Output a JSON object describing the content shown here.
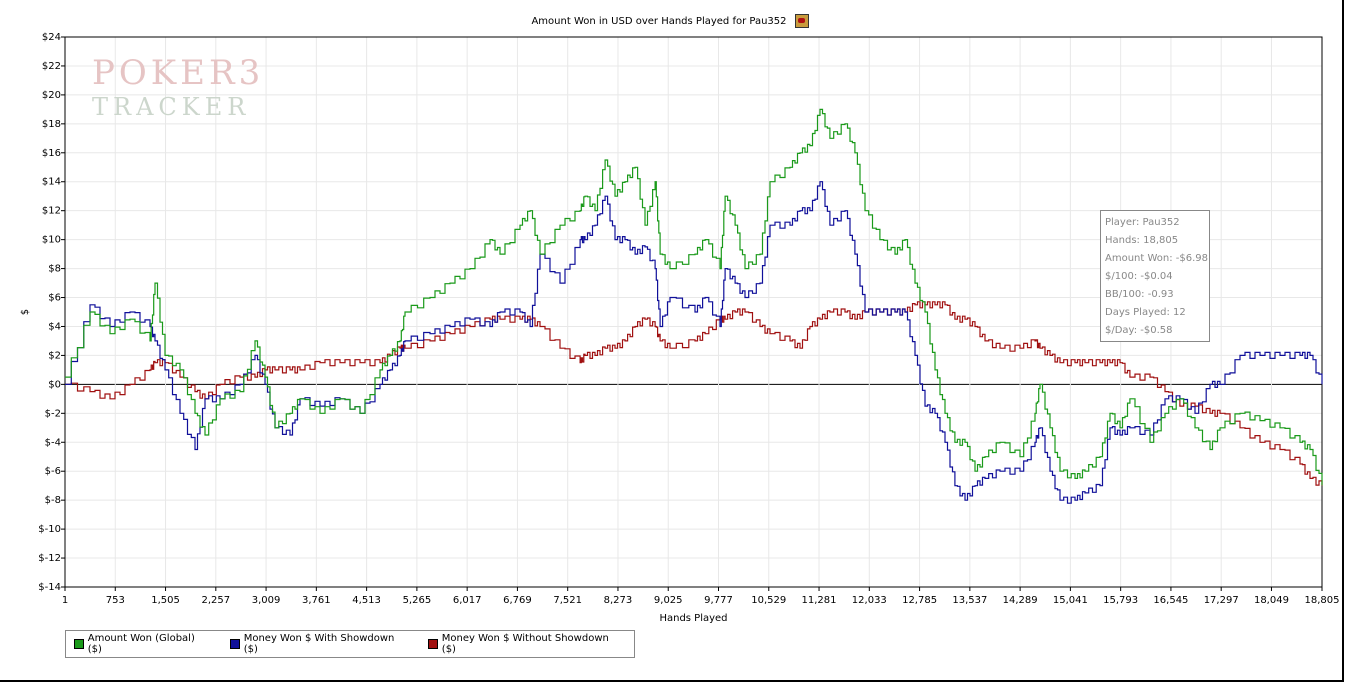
{
  "chart_data": {
    "type": "line",
    "title": "Amount Won in USD over Hands Played for Pau352",
    "xlabel": "Hands Played",
    "ylabel": "$",
    "xlim": [
      1,
      18805
    ],
    "ylim": [
      -14,
      24
    ],
    "yticks": [
      24,
      22,
      20,
      18,
      16,
      14,
      12,
      10,
      8,
      6,
      4,
      2,
      0,
      -2,
      -4,
      -6,
      -8,
      -10,
      -12,
      -14
    ],
    "ytick_labels": [
      "$24",
      "$22",
      "$20",
      "$18",
      "$16",
      "$14",
      "$12",
      "$10",
      "$8",
      "$6",
      "$4",
      "$2",
      "$0",
      "$-2",
      "$-4",
      "$-6",
      "$-8",
      "$-10",
      "$-12",
      "$-14"
    ],
    "xticks": [
      1,
      753,
      1505,
      2257,
      3009,
      3761,
      4513,
      5265,
      6017,
      6769,
      7521,
      8273,
      9025,
      9777,
      10529,
      11281,
      12033,
      12785,
      13537,
      14289,
      15041,
      15793,
      16545,
      17297,
      18049,
      18805
    ],
    "xtick_labels": [
      "1",
      "753",
      "1,505",
      "2,257",
      "3,009",
      "3,761",
      "4,513",
      "5,265",
      "6,017",
      "6,769",
      "7,521",
      "8,273",
      "9,025",
      "9,777",
      "10,529",
      "11,281",
      "12,033",
      "12,785",
      "13,537",
      "14,289",
      "15,041",
      "15,793",
      "16,545",
      "17,297",
      "18,049",
      "18,805"
    ],
    "grid": true,
    "legend": "bottom-left",
    "x": [
      1,
      375,
      674,
      973,
      1272,
      1347,
      1497,
      1721,
      1946,
      2095,
      2320,
      2619,
      2843,
      2993,
      3143,
      3367,
      3517,
      3816,
      4115,
      4414,
      4713,
      4863,
      5013,
      5087,
      5461,
      5760,
      6060,
      6359,
      6509,
      6808,
      6958,
      7107,
      7406,
      7706,
      7780,
      7930,
      8080,
      8229,
      8379,
      8529,
      8678,
      8828,
      8903,
      9052,
      9426,
      9576,
      9800,
      9875,
      10025,
      10173,
      10398,
      10547,
      10846,
      10996,
      11145,
      11295,
      11444,
      11669,
      11818,
      11968,
      12192,
      12417,
      12567,
      12716,
      12866,
      13015,
      13165,
      13314,
      13464,
      13614,
      13763,
      13988,
      14287,
      14511,
      14586,
      14736,
      14885,
      15110,
      15259,
      15484,
      15633,
      15783,
      15932,
      16232,
      16456,
      16680,
      16905,
      17129,
      17279,
      17578,
      17877,
      18176,
      18476,
      18625,
      18805
    ],
    "series": [
      {
        "name": "Amount Won (Global) ($)",
        "color": "#1a9a1a",
        "values": [
          0.5,
          5,
          3.5,
          4.5,
          3,
          7,
          2,
          1,
          -2,
          -3.5,
          -1,
          -0.5,
          3,
          0.5,
          -3,
          -2,
          -1,
          -2,
          -1,
          -2,
          1,
          2,
          3,
          5,
          6,
          7,
          8,
          10,
          9,
          11,
          12,
          9,
          11,
          12,
          13,
          12,
          15.5,
          13,
          14,
          15,
          11,
          14,
          9,
          8,
          9,
          10,
          8,
          13,
          11,
          8,
          9,
          14,
          15,
          16,
          16.5,
          19,
          17,
          18,
          16,
          12,
          10,
          9,
          10,
          7,
          5,
          1,
          -2,
          -4,
          -4,
          -6,
          -5,
          -4,
          -5,
          -2,
          0,
          -3,
          -6,
          -6.5,
          -6,
          -5,
          -2,
          -3,
          -1,
          -4,
          -2,
          -1,
          -3,
          -4.5,
          -3,
          -2,
          -2.5,
          -3,
          -4,
          -4.5,
          -6.98
        ]
      },
      {
        "name": "Money Won $ With Showdown ($)",
        "color": "#10109a",
        "values": [
          0,
          5.5,
          4,
          5,
          4,
          3,
          1,
          -2,
          -4.5,
          -1,
          -1,
          0,
          2,
          0,
          -3,
          -3.5,
          -1,
          -1.5,
          -1,
          -2,
          0,
          1,
          2,
          3,
          3.5,
          4,
          4.5,
          4,
          5,
          5,
          4,
          9,
          7,
          10,
          10,
          11,
          13,
          10,
          10,
          9,
          9.5,
          8,
          4,
          6,
          5,
          6,
          4,
          8,
          7,
          6,
          7,
          11,
          11,
          12,
          12,
          14,
          11,
          12,
          9,
          5,
          5,
          5,
          5,
          2,
          -1.5,
          -2,
          -4,
          -7,
          -8,
          -7,
          -6.5,
          -6,
          -6,
          -4,
          -3,
          -6,
          -8,
          -8,
          -7.5,
          -7,
          -3,
          -3.5,
          -3,
          -3.5,
          -1,
          -1,
          -2,
          0,
          0,
          2,
          2,
          2,
          2,
          2,
          0
        ]
      },
      {
        "name": "Money Won $ Without Showdown ($)",
        "color": "#a01010",
        "values": [
          0,
          -0.5,
          -1,
          0,
          1,
          1.5,
          1.5,
          0.5,
          -0.5,
          -1,
          0,
          0.5,
          0.5,
          1,
          1,
          1,
          1,
          1.5,
          1.5,
          1.5,
          1.5,
          2,
          2.5,
          2.5,
          3,
          3.5,
          4,
          4.5,
          4.5,
          4.5,
          4.5,
          4,
          2.5,
          1.5,
          2,
          2,
          2.5,
          2.5,
          3,
          4,
          4.5,
          4,
          3,
          2.5,
          3,
          3.5,
          4.5,
          4.5,
          5,
          5,
          4,
          3.5,
          3,
          2.5,
          4,
          4.5,
          5,
          5,
          4.5,
          5,
          5,
          5,
          5,
          5.5,
          5.5,
          5.5,
          5.5,
          4.5,
          4.5,
          4,
          3,
          2.5,
          2.5,
          3,
          2.5,
          2,
          1.5,
          1.5,
          1.5,
          1.5,
          1.5,
          1.5,
          0.5,
          0.5,
          -0.5,
          -1.5,
          -1.5,
          -2,
          -2,
          -3,
          -4,
          -4.5,
          -5.5,
          -6.5,
          -7
        ]
      }
    ]
  },
  "tooltip": {
    "lines": [
      "Player: Pau352",
      "Hands: 18,805",
      "Amount Won: -$6.98",
      "$/100: -$0.04",
      "BB/100: -0.93",
      "Days Played: 12",
      "$/Day: -$0.58"
    ]
  },
  "watermark": {
    "line1": "POKER3",
    "line2": "TRACKER"
  }
}
